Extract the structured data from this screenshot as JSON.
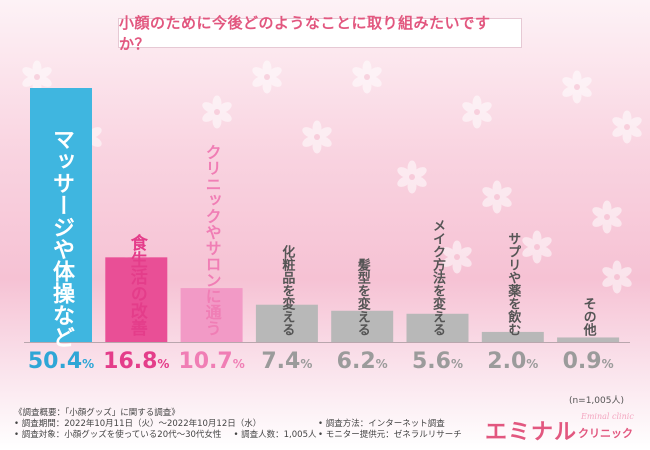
{
  "title": "小顔のために今後どのようなことに取り組みたいですか？",
  "sample_note": "(n=1,005人)",
  "chart_data": {
    "type": "bar",
    "title": "小顔のために今後どのようなことに取り組みたいですか？",
    "categories": [
      "マッサージや体操など",
      "食生活の改善",
      "クリニックやサロンに通う",
      "化粧品を変える",
      "髪型を変える",
      "メイク方法を変える",
      "サプリや薬を飲む",
      "その他"
    ],
    "values": [
      50.4,
      16.8,
      10.7,
      7.4,
      6.2,
      5.6,
      2.0,
      0.9
    ],
    "value_labels": [
      {
        "num": "50.4",
        "unit": "%"
      },
      {
        "num": "16.8",
        "unit": "%"
      },
      {
        "num": "10.7",
        "unit": "%"
      },
      {
        "num": "7.4",
        "unit": "%"
      },
      {
        "num": "6.2",
        "unit": "%"
      },
      {
        "num": "5.6",
        "unit": "%"
      },
      {
        "num": "2.0",
        "unit": "%"
      },
      {
        "num": "0.9",
        "unit": "%"
      }
    ],
    "colors": [
      "#3fb6e0",
      "#e94f96",
      "#f29ac6",
      "#b8b8b8",
      "#b8b8b8",
      "#b8b8b8",
      "#b8b8b8",
      "#b8b8b8"
    ],
    "label_colors": [
      "#ffffff",
      "#e43d8a",
      "#f07eb5",
      "#555555",
      "#555555",
      "#555555",
      "#555555",
      "#555555"
    ],
    "ylim": [
      0,
      50.4
    ],
    "grid": false,
    "legend": "none"
  },
  "survey": {
    "heading": "《調査概要：「小顔グッズ」に関する調査》",
    "period": "• 調査期間：2022年10月11日（火）〜2022年10月12日（水）",
    "target": "• 調査対象：小顔グッズを使っている20代〜30代女性",
    "count": "• 調査人数：1,005人",
    "method": "• 調査方法：インターネット調査",
    "provider": "• モニター提供元：ゼネラルリサーチ"
  },
  "logo": {
    "main": "エミナル",
    "sub": "クリニック",
    "script": "Eminal clinic"
  },
  "colors": {
    "accent": "#e2577f",
    "highlight": "#3fb6e0"
  }
}
